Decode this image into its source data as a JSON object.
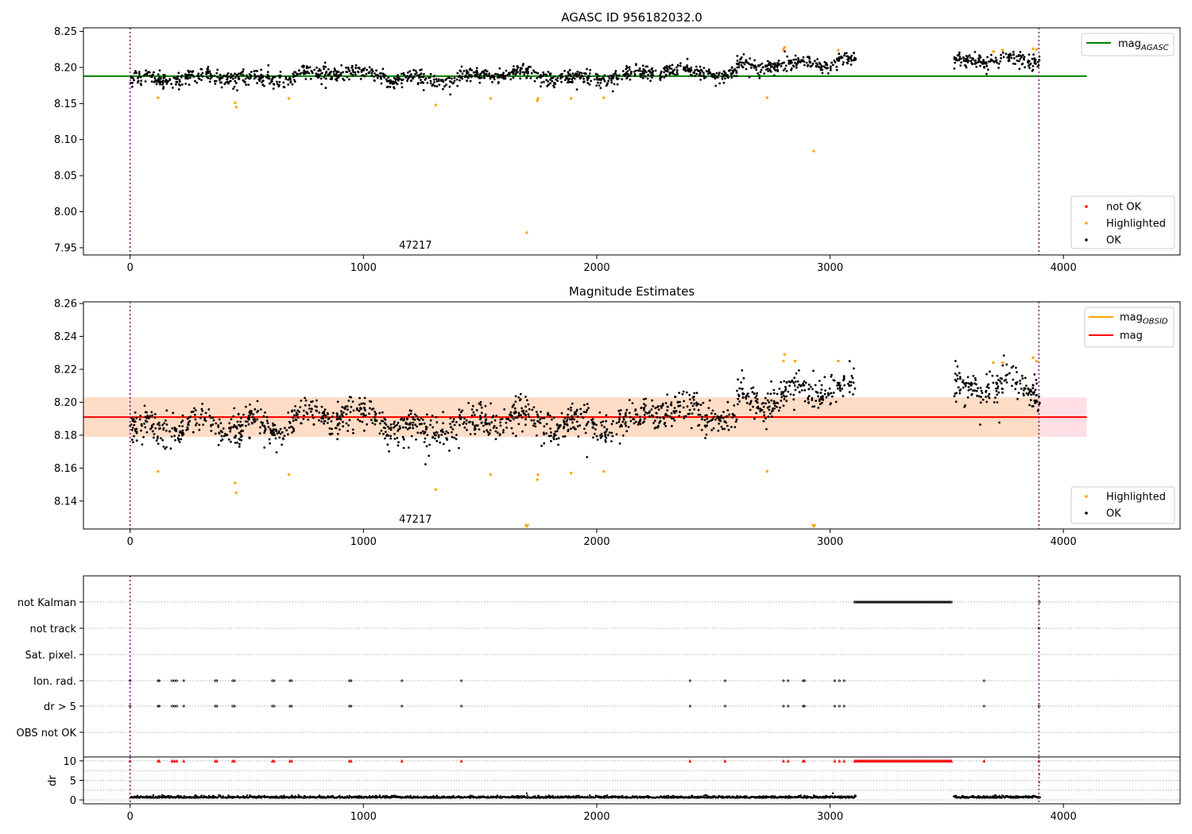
{
  "chart_data": [
    {
      "type": "scatter",
      "title": "AGASC ID 956182032.0",
      "xlim": [
        -200,
        4500
      ],
      "ylim": [
        7.94,
        8.255
      ],
      "x_ticks": [
        0,
        1000,
        2000,
        3000,
        4000
      ],
      "y_ticks": [
        7.95,
        8.0,
        8.05,
        8.1,
        8.15,
        8.2,
        8.25
      ],
      "y_tick_labels": [
        "7.95",
        "8.00",
        "8.05",
        "8.10",
        "8.15",
        "8.20",
        "8.25"
      ],
      "x_tick_labels": [
        "0",
        "1000",
        "2000",
        "3000",
        "4000"
      ],
      "vlines": [
        0,
        3895
      ],
      "vline_color": "#800080",
      "lines": [
        {
          "name": "mag",
          "subscript": "AGASC",
          "y": 8.188,
          "x_range": [
            -200,
            4100
          ],
          "color": "#008000"
        }
      ],
      "series": [
        {
          "name": "not OK",
          "color": "#ff0000"
        },
        {
          "name": "Highlighted",
          "color": "#ffa500"
        },
        {
          "name": "OK",
          "color": "#000000"
        }
      ],
      "highlighted_points": [
        [
          120,
          8.158
        ],
        [
          450,
          8.151
        ],
        [
          455,
          8.145
        ],
        [
          680,
          8.157
        ],
        [
          1310,
          8.148
        ],
        [
          1545,
          8.157
        ],
        [
          1700,
          7.971
        ],
        [
          1745,
          8.154
        ],
        [
          1748,
          8.157
        ],
        [
          1890,
          8.157
        ],
        [
          2030,
          8.158
        ],
        [
          2730,
          8.158
        ],
        [
          2800,
          8.225
        ],
        [
          2805,
          8.228
        ],
        [
          2930,
          8.084
        ],
        [
          3035,
          8.224
        ],
        [
          3700,
          8.222
        ],
        [
          3740,
          8.224
        ],
        [
          3870,
          8.226
        ],
        [
          3885,
          8.225
        ]
      ],
      "ok_segments": [
        [
          0,
          300,
          8.182
        ],
        [
          300,
          700,
          8.188
        ],
        [
          700,
          1100,
          8.19
        ],
        [
          1100,
          1500,
          8.186
        ],
        [
          1500,
          1800,
          8.188
        ],
        [
          1800,
          2200,
          8.188
        ],
        [
          2200,
          2600,
          8.192
        ],
        [
          2600,
          3110,
          8.205
        ],
        [
          3530,
          3900,
          8.208
        ]
      ],
      "ok_spread": 0.009,
      "annotation": "47217",
      "annotation_x": 1945,
      "legend_lines_position": "top-right",
      "legend_points_position": "bottom-right",
      "grid": false
    },
    {
      "type": "scatter",
      "title": "Magnitude Estimates",
      "xlim": [
        -200,
        4500
      ],
      "ylim": [
        8.123,
        8.261
      ],
      "x_ticks": [
        0,
        1000,
        2000,
        3000,
        4000
      ],
      "x_tick_labels": [
        "0",
        "1000",
        "2000",
        "3000",
        "4000"
      ],
      "y_ticks": [
        8.14,
        8.16,
        8.18,
        8.2,
        8.22,
        8.24,
        8.26
      ],
      "y_tick_labels": [
        "8.14",
        "8.16",
        "8.18",
        "8.20",
        "8.22",
        "8.24",
        "8.26"
      ],
      "vlines": [
        0,
        3895
      ],
      "vline_color": "#800080",
      "lines": [
        {
          "name": "mag",
          "subscript": "OBSID",
          "color": "#ffa500"
        },
        {
          "name": "mag",
          "subscript": "",
          "y": 8.191,
          "x_range": [
            -200,
            4100
          ],
          "color": "#ff0000"
        }
      ],
      "band": {
        "y_range": [
          8.179,
          8.203
        ],
        "x_range": [
          -200,
          4100
        ],
        "color": "#ffc0cb"
      },
      "obsid_band": {
        "y_range": [
          8.179,
          8.203
        ],
        "x_range": [
          -200,
          3900
        ],
        "color": "#ffdab9"
      },
      "obsid_level": 8.191,
      "series": [
        {
          "name": "Highlighted",
          "color": "#ffa500"
        },
        {
          "name": "OK",
          "color": "#000000"
        }
      ],
      "highlighted_points": [
        [
          120,
          8.158
        ],
        [
          450,
          8.151
        ],
        [
          455,
          8.145
        ],
        [
          680,
          8.156
        ],
        [
          1310,
          8.147
        ],
        [
          1545,
          8.156
        ],
        [
          1745,
          8.153
        ],
        [
          1748,
          8.156
        ],
        [
          1890,
          8.157
        ],
        [
          2030,
          8.158
        ],
        [
          2730,
          8.158
        ],
        [
          2800,
          8.225
        ],
        [
          2805,
          8.229
        ],
        [
          2850,
          8.225
        ],
        [
          3035,
          8.225
        ],
        [
          3700,
          8.224
        ],
        [
          3740,
          8.224
        ],
        [
          3870,
          8.227
        ],
        [
          3885,
          8.225
        ]
      ],
      "offscale_markers": [
        1700,
        2930
      ],
      "ok_segments": [
        [
          0,
          300,
          8.182
        ],
        [
          300,
          700,
          8.188
        ],
        [
          700,
          1100,
          8.19
        ],
        [
          1100,
          1500,
          8.186
        ],
        [
          1500,
          1800,
          8.188
        ],
        [
          1800,
          2200,
          8.188
        ],
        [
          2200,
          2600,
          8.192
        ],
        [
          2600,
          3110,
          8.205
        ],
        [
          3530,
          3900,
          8.208
        ]
      ],
      "ok_spread": 0.009,
      "annotation": "47217",
      "annotation_x": 1945,
      "legend_lines_position": "top-right",
      "legend_points_position": "bottom-right",
      "grid": false
    },
    {
      "type": "scatter",
      "xlim": [
        -200,
        4500
      ],
      "x_ticks": [
        0,
        1000,
        2000,
        3000,
        4000
      ],
      "x_tick_labels": [
        "0",
        "1000",
        "2000",
        "3000",
        "4000"
      ],
      "vlines": [
        0,
        3895
      ],
      "vline_color": "#800080",
      "flag_rows": [
        "not Kalman",
        "not track",
        "Sat. pixel.",
        "Ion. rad.",
        "dr > 5",
        "OBS not OK"
      ],
      "flag_points": {
        "not Kalman": {
          "ranges": [
            [
              3105,
              3520
            ]
          ],
          "points": [
            3897
          ]
        },
        "not track": {
          "ranges": [],
          "points": [
            3895
          ]
        },
        "Sat. pixel.": {
          "ranges": [],
          "points": []
        },
        "Ion. rad.": {
          "ranges": [],
          "points": [
            0,
            120,
            125,
            180,
            190,
            200,
            230,
            365,
            372,
            440,
            447,
            610,
            617,
            685,
            692,
            940,
            947,
            1165,
            1420,
            2400,
            2550,
            2800,
            2820,
            2885,
            2890,
            3020,
            3040,
            3060,
            3660
          ]
        },
        "dr > 5": {
          "ranges": [],
          "points": [
            0,
            120,
            125,
            180,
            190,
            200,
            230,
            365,
            372,
            440,
            447,
            610,
            617,
            685,
            692,
            940,
            947,
            1165,
            1420,
            2400,
            2550,
            2800,
            2820,
            2885,
            2890,
            3020,
            3040,
            3060,
            3660,
            3895
          ]
        },
        "OBS not OK": {
          "ranges": [],
          "points": []
        }
      },
      "dr": {
        "ylabel": "dr",
        "ylim": [
          -1,
          11
        ],
        "y_ticks": [
          0,
          5,
          10
        ],
        "y_tick_labels": [
          "0",
          "5",
          "10"
        ],
        "gridlines": [
          0,
          2.5,
          5,
          7.5,
          10
        ],
        "clipped_value": 10,
        "clipped_points": [
          0,
          120,
          125,
          180,
          190,
          200,
          230,
          365,
          372,
          440,
          447,
          610,
          617,
          685,
          692,
          940,
          947,
          1165,
          1420,
          2400,
          2550,
          2800,
          2820,
          2885,
          2890,
          3020,
          3040,
          3060,
          3660,
          3895
        ],
        "clipped_ranges": [
          [
            3105,
            3520
          ]
        ],
        "baseline_segments": [
          [
            0,
            3110
          ],
          [
            3530,
            3900
          ]
        ],
        "baseline_level": 0.5,
        "extra_points": [
          [
            1700,
            1.7
          ],
          [
            3897,
            6.5
          ],
          [
            3897,
            4.5
          ]
        ]
      },
      "grid": true
    }
  ]
}
